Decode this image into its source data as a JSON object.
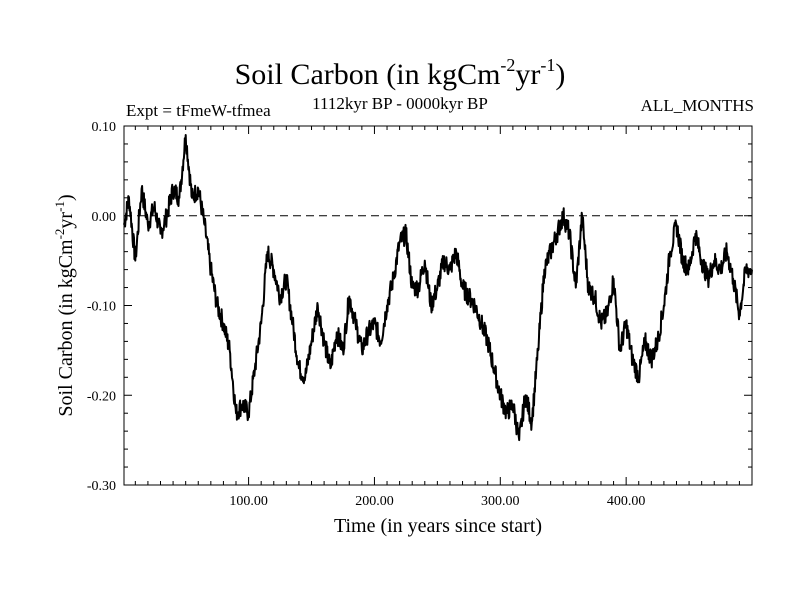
{
  "header": {
    "title_main": "Soil Carbon (in kgCm",
    "title_exp1": "-2",
    "title_mid": "yr",
    "title_exp2": "-1",
    "title_end": ")",
    "subtitle": "1112kyr BP - 0000kyr BP",
    "expt": "Expt = tFmeW-tfmea",
    "months": "ALL_MONTHS"
  },
  "chart_data": {
    "type": "line",
    "title": "Soil Carbon (in kgCm-2yr-1)",
    "xlabel": "Time (in years since start)",
    "ylabel": "Soil Carbon (in kgCm-2yr-1)",
    "ylabel_parts": {
      "main": "Soil Carbon (in kgCm",
      "exp1": "-2",
      "mid": "yr",
      "exp2": "-1",
      "end": ")"
    },
    "xlim": [
      1,
      500
    ],
    "ylim": [
      -0.3,
      0.1
    ],
    "xticks": [
      100,
      200,
      300,
      400
    ],
    "xtick_labels": [
      "100.00",
      "200.00",
      "300.00",
      "400.00"
    ],
    "yticks": [
      0.1,
      0.0,
      -0.1,
      -0.2,
      -0.3
    ],
    "ytick_labels": [
      "0.10",
      "0.00",
      "-0.10",
      "-0.20",
      "-0.30"
    ],
    "reference_line": 0.0,
    "series": [
      {
        "name": "Soil Carbon",
        "x": [
          1,
          5,
          10,
          15,
          20,
          25,
          30,
          35,
          40,
          45,
          50,
          55,
          60,
          65,
          70,
          75,
          80,
          85,
          90,
          95,
          100,
          105,
          110,
          115,
          120,
          125,
          130,
          135,
          140,
          145,
          150,
          155,
          160,
          165,
          170,
          175,
          180,
          185,
          190,
          195,
          200,
          205,
          210,
          215,
          220,
          225,
          230,
          235,
          240,
          245,
          250,
          255,
          260,
          265,
          270,
          275,
          280,
          285,
          290,
          295,
          300,
          305,
          310,
          315,
          320,
          325,
          330,
          335,
          340,
          345,
          350,
          355,
          360,
          365,
          370,
          375,
          380,
          385,
          390,
          395,
          400,
          405,
          410,
          415,
          420,
          425,
          430,
          435,
          440,
          445,
          450,
          455,
          460,
          465,
          470,
          475,
          480,
          485,
          490,
          495,
          500
        ],
        "values": [
          -0.01,
          0.02,
          -0.05,
          0.03,
          -0.01,
          0.01,
          -0.02,
          0.0,
          0.03,
          0.02,
          0.09,
          0.02,
          0.03,
          -0.01,
          -0.06,
          -0.1,
          -0.12,
          -0.15,
          -0.22,
          -0.21,
          -0.22,
          -0.17,
          -0.12,
          -0.04,
          -0.06,
          -0.09,
          -0.07,
          -0.12,
          -0.17,
          -0.18,
          -0.14,
          -0.1,
          -0.14,
          -0.17,
          -0.13,
          -0.15,
          -0.09,
          -0.12,
          -0.15,
          -0.13,
          -0.12,
          -0.14,
          -0.1,
          -0.07,
          -0.03,
          -0.02,
          -0.08,
          -0.08,
          -0.05,
          -0.1,
          -0.08,
          -0.05,
          -0.06,
          -0.04,
          -0.08,
          -0.09,
          -0.1,
          -0.12,
          -0.14,
          -0.17,
          -0.2,
          -0.22,
          -0.21,
          -0.25,
          -0.2,
          -0.23,
          -0.15,
          -0.06,
          -0.04,
          -0.02,
          0.0,
          -0.02,
          -0.08,
          0.0,
          -0.08,
          -0.09,
          -0.12,
          -0.11,
          -0.07,
          -0.15,
          -0.12,
          -0.16,
          -0.18,
          -0.14,
          -0.16,
          -0.14,
          -0.1,
          -0.04,
          -0.01,
          -0.05,
          -0.06,
          -0.02,
          -0.05,
          -0.07,
          -0.05,
          -0.06,
          -0.04,
          -0.07,
          -0.11,
          -0.06,
          -0.06
        ]
      }
    ]
  }
}
